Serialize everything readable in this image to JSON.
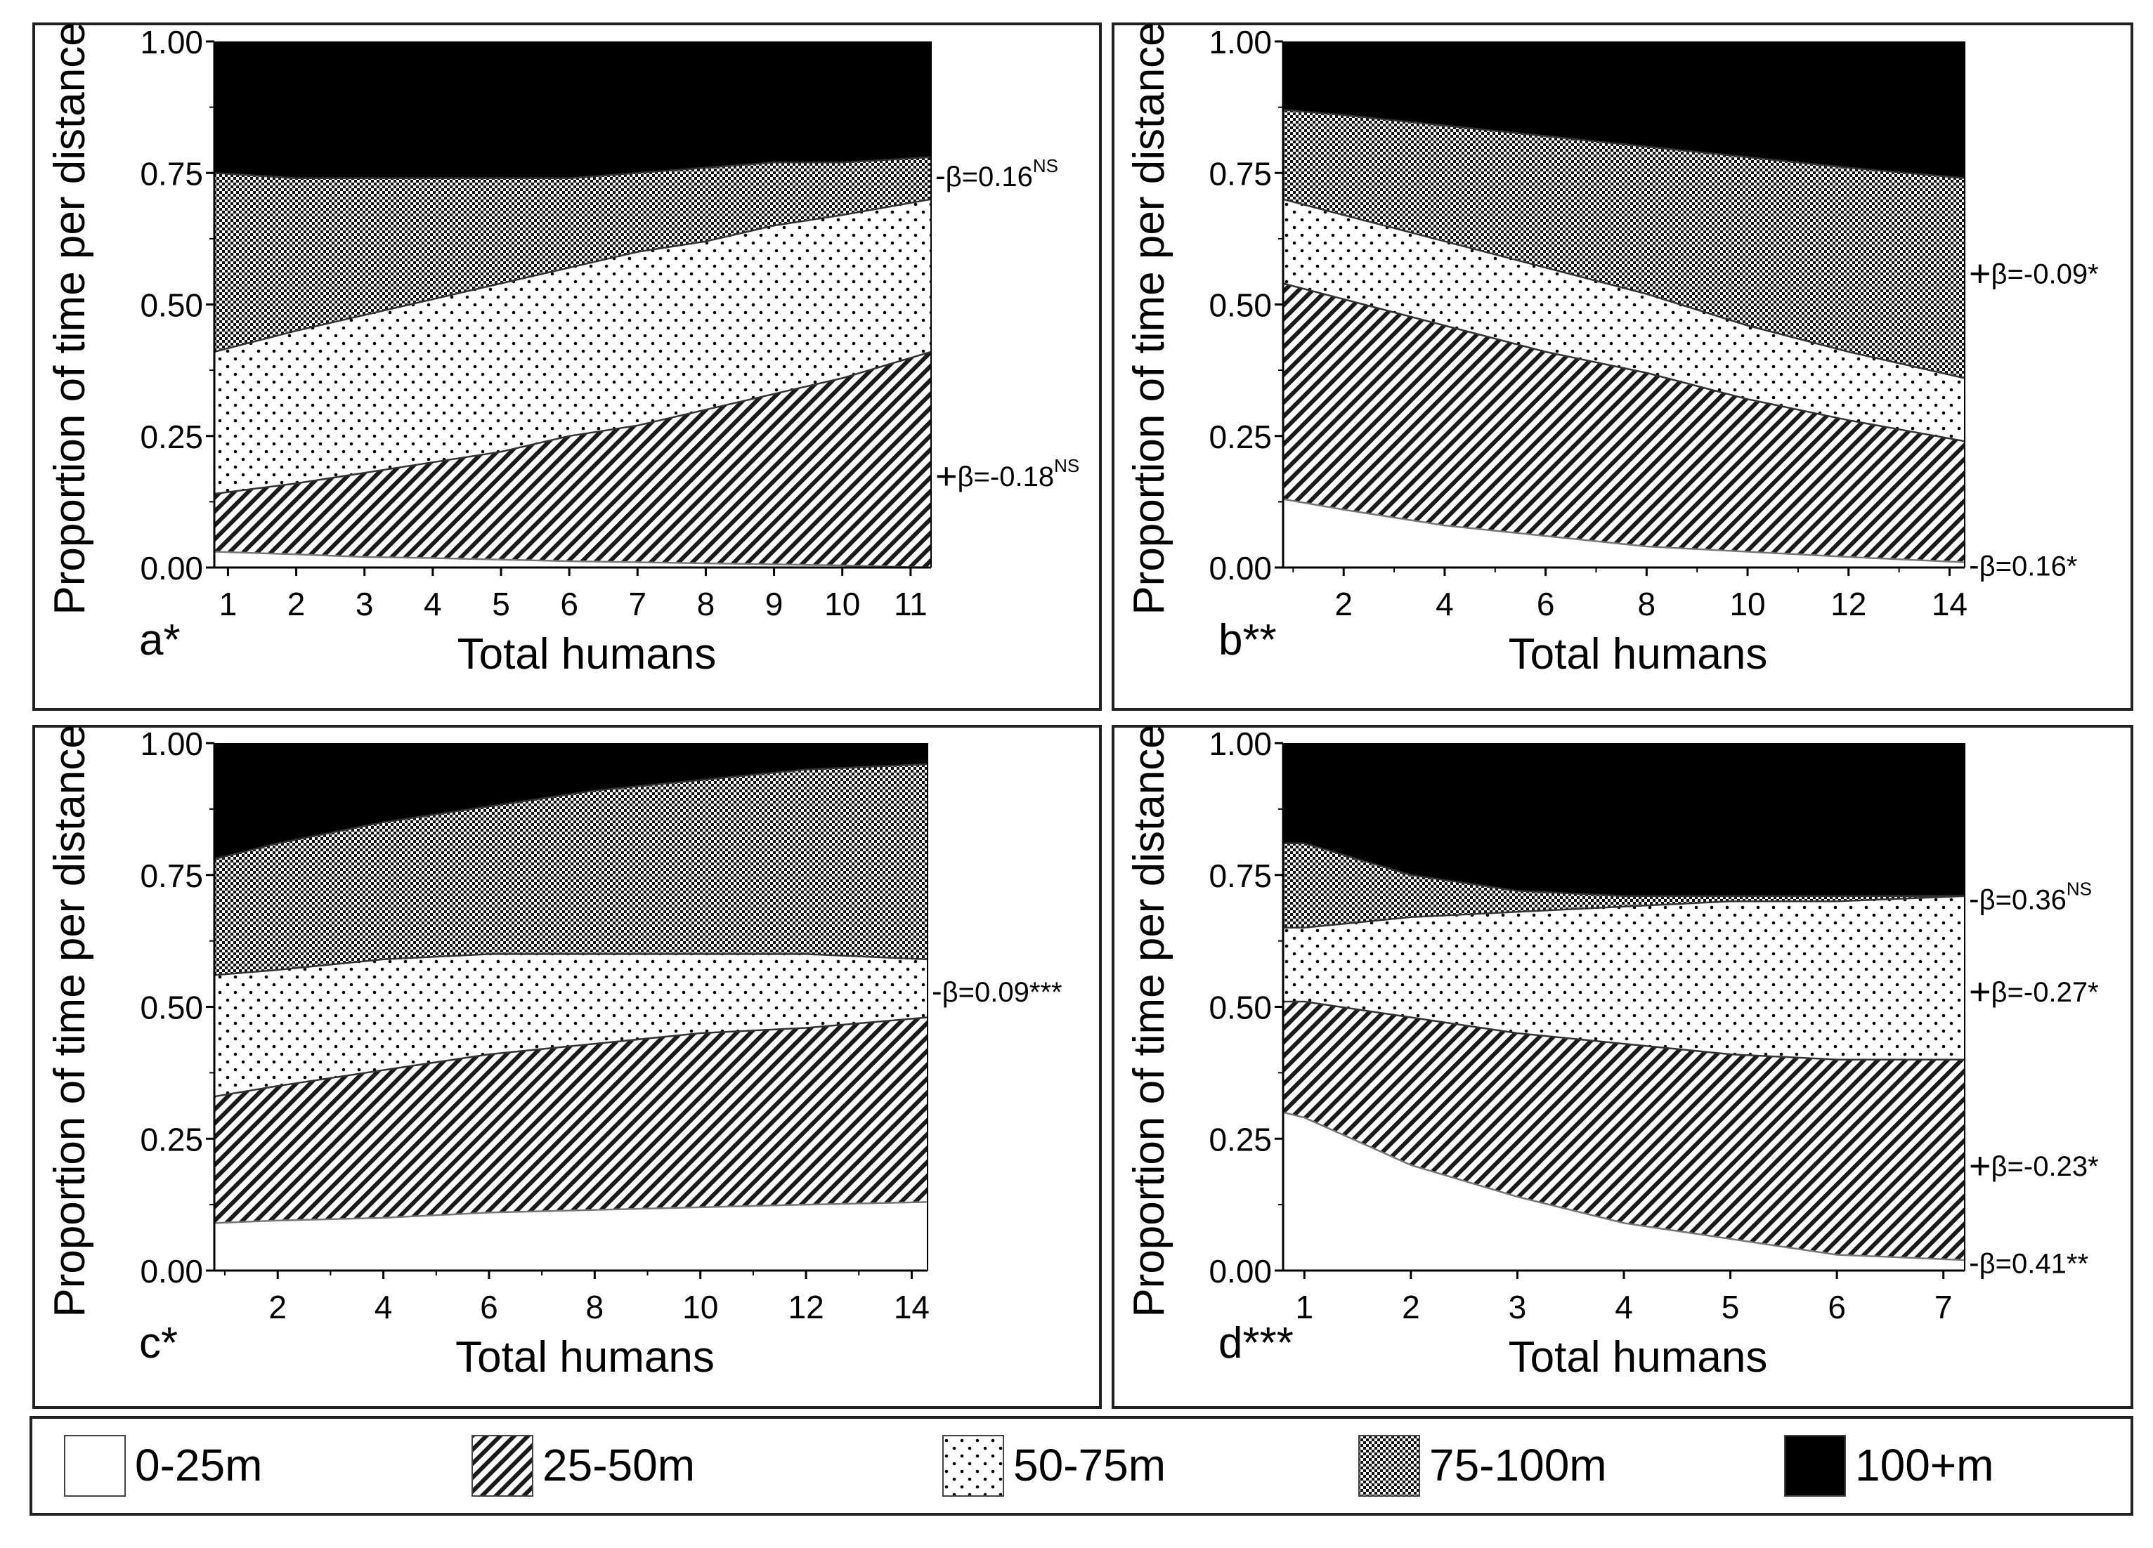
{
  "y_axis_label": "Proportion of time per distance",
  "x_axis_label": "Total humans",
  "y_ticks": [
    "0.00",
    "0.25",
    "0.50",
    "0.75",
    "1.00"
  ],
  "legend": [
    {
      "label": "0-25m",
      "pattern": "solid-white"
    },
    {
      "label": "25-50m",
      "pattern": "diagonal-hatch"
    },
    {
      "label": "50-75m",
      "pattern": "dots"
    },
    {
      "label": "75-100m",
      "pattern": "crosshatch"
    },
    {
      "label": "100+m",
      "pattern": "solid-black"
    }
  ],
  "chart_data": [
    {
      "type": "area",
      "panel_label": "a*",
      "xlabel": "Total humans",
      "ylabel": "Proportion of time per distance",
      "xlim": [
        0.8,
        11.3
      ],
      "ylim": [
        0,
        1
      ],
      "x_ticks": [
        1,
        2,
        3,
        4,
        5,
        6,
        7,
        8,
        9,
        10,
        11
      ],
      "x": [
        0.8,
        2,
        3,
        4,
        5,
        6,
        7,
        8,
        9,
        10,
        11.3
      ],
      "boundaries": [
        {
          "name": "0-25m upper",
          "values": [
            0.03,
            0.025,
            0.02,
            0.018,
            0.015,
            0.012,
            0.01,
            0.008,
            0.006,
            0.004,
            0.0
          ]
        },
        {
          "name": "25-50m upper",
          "values": [
            0.14,
            0.16,
            0.18,
            0.2,
            0.22,
            0.25,
            0.27,
            0.3,
            0.33,
            0.36,
            0.41
          ]
        },
        {
          "name": "50-75m upper",
          "values": [
            0.41,
            0.45,
            0.48,
            0.51,
            0.54,
            0.57,
            0.6,
            0.62,
            0.65,
            0.67,
            0.7
          ]
        },
        {
          "name": "75-100m upper",
          "values": [
            0.75,
            0.74,
            0.74,
            0.74,
            0.74,
            0.74,
            0.75,
            0.76,
            0.77,
            0.77,
            0.78
          ]
        }
      ],
      "annotations": [
        {
          "text": "β=0.16",
          "sup": "NS",
          "y": 0.745,
          "marker": "-"
        },
        {
          "text": "β=-0.18",
          "sup": "NS",
          "y": 0.175,
          "marker": "+"
        }
      ]
    },
    {
      "type": "area",
      "panel_label": "b**",
      "xlabel": "Total humans",
      "ylabel": "Proportion of time per distance",
      "xlim": [
        0.8,
        14.3
      ],
      "ylim": [
        0,
        1
      ],
      "x_ticks": [
        2,
        4,
        6,
        8,
        10,
        12,
        14
      ],
      "x": [
        0.8,
        2,
        4,
        6,
        8,
        10,
        12,
        14.3
      ],
      "boundaries": [
        {
          "name": "0-25m upper",
          "values": [
            0.13,
            0.11,
            0.08,
            0.06,
            0.04,
            0.03,
            0.02,
            0.01
          ]
        },
        {
          "name": "25-50m upper",
          "values": [
            0.54,
            0.51,
            0.46,
            0.41,
            0.37,
            0.32,
            0.28,
            0.24
          ]
        },
        {
          "name": "50-75m upper",
          "values": [
            0.7,
            0.67,
            0.62,
            0.57,
            0.52,
            0.46,
            0.41,
            0.36
          ]
        },
        {
          "name": "75-100m upper",
          "values": [
            0.87,
            0.86,
            0.84,
            0.82,
            0.8,
            0.78,
            0.76,
            0.74
          ]
        }
      ],
      "annotations": [
        {
          "text": "β=-0.09*",
          "sup": "",
          "y": 0.56,
          "marker": "+"
        },
        {
          "text": "β=0.16*",
          "sup": "",
          "y": 0.005,
          "marker": "-"
        }
      ]
    },
    {
      "type": "area",
      "panel_label": "c*",
      "xlabel": "Total humans",
      "ylabel": "Proportion of time per distance",
      "xlim": [
        0.8,
        14.3
      ],
      "ylim": [
        0,
        1
      ],
      "x_ticks": [
        2,
        4,
        6,
        8,
        10,
        12,
        14
      ],
      "x": [
        0.8,
        2,
        4,
        6,
        8,
        10,
        12,
        14.3
      ],
      "boundaries": [
        {
          "name": "0-25m upper",
          "values": [
            0.09,
            0.095,
            0.1,
            0.11,
            0.115,
            0.12,
            0.125,
            0.13
          ]
        },
        {
          "name": "25-50m upper",
          "values": [
            0.33,
            0.35,
            0.38,
            0.41,
            0.43,
            0.45,
            0.46,
            0.48
          ]
        },
        {
          "name": "50-75m upper",
          "values": [
            0.56,
            0.57,
            0.59,
            0.6,
            0.6,
            0.6,
            0.6,
            0.59
          ]
        },
        {
          "name": "75-100m upper",
          "values": [
            0.78,
            0.81,
            0.85,
            0.88,
            0.91,
            0.93,
            0.95,
            0.96
          ]
        }
      ],
      "annotations": [
        {
          "text": "β=0.09***",
          "sup": "",
          "y": 0.53,
          "marker": "-"
        }
      ]
    },
    {
      "type": "area",
      "panel_label": "d***",
      "xlabel": "Total humans",
      "ylabel": "Proportion of time per distance",
      "xlim": [
        0.8,
        7.2
      ],
      "ylim": [
        0,
        1
      ],
      "x_ticks": [
        1,
        2,
        3,
        4,
        5,
        6,
        7
      ],
      "x": [
        0.8,
        1,
        2,
        3,
        4,
        5,
        6,
        7.2
      ],
      "boundaries": [
        {
          "name": "0-25m upper",
          "values": [
            0.3,
            0.29,
            0.2,
            0.14,
            0.09,
            0.06,
            0.03,
            0.02
          ]
        },
        {
          "name": "25-50m upper",
          "values": [
            0.51,
            0.51,
            0.48,
            0.45,
            0.43,
            0.41,
            0.4,
            0.4
          ]
        },
        {
          "name": "50-75m upper",
          "values": [
            0.65,
            0.65,
            0.67,
            0.68,
            0.69,
            0.7,
            0.7,
            0.71
          ]
        },
        {
          "name": "75-100m upper",
          "values": [
            0.81,
            0.81,
            0.75,
            0.72,
            0.71,
            0.71,
            0.71,
            0.71
          ]
        }
      ],
      "annotations": [
        {
          "text": "β=0.36",
          "sup": "NS",
          "y": 0.705,
          "marker": "-"
        },
        {
          "text": "β=-0.27*",
          "sup": "",
          "y": 0.53,
          "marker": "+"
        },
        {
          "text": "β=-0.23*",
          "sup": "",
          "y": 0.2,
          "marker": "+"
        },
        {
          "text": "β=0.41**",
          "sup": "",
          "y": 0.015,
          "marker": "-"
        }
      ]
    }
  ]
}
